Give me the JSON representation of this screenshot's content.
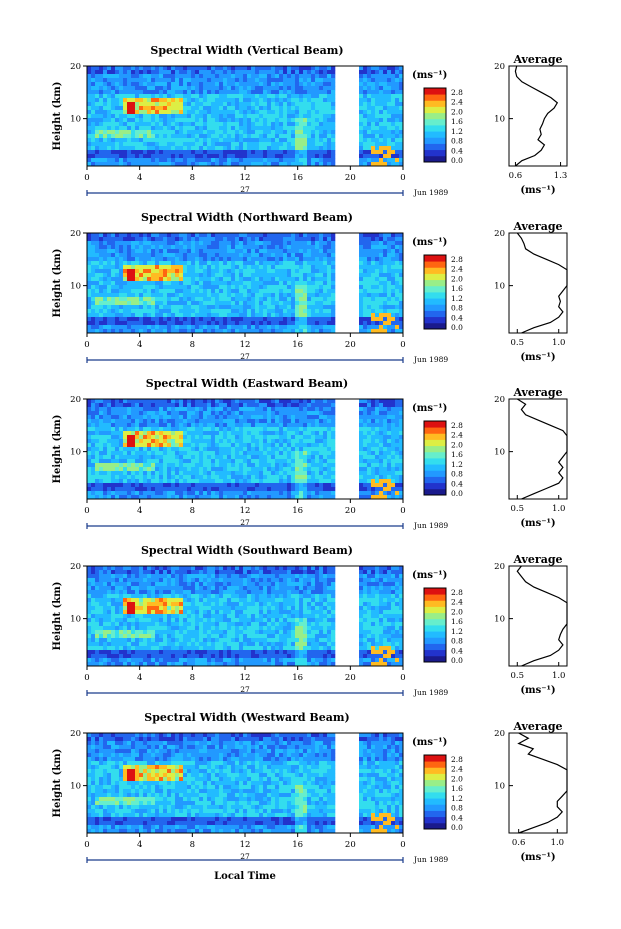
{
  "figure": {
    "xlabel": "Local Time",
    "date_label": "Jun 1989",
    "day_label": "27"
  },
  "chart_data": [
    {
      "type": "heatmap",
      "title": "Spectral Width (Vertical Beam)",
      "xlabel": "",
      "ylabel": "Height (km)",
      "x_ticks": [
        "0",
        "4",
        "8",
        "12",
        "16",
        "20",
        "0"
      ],
      "xlim": [
        0,
        24
      ],
      "y_ticks": [
        "20",
        "10"
      ],
      "ylim": [
        1,
        20
      ],
      "data_gap_hours": [
        19.0,
        20.5
      ],
      "colorbar": {
        "label": "(ms⁻¹)",
        "ticks": [
          "2.8",
          "2.4",
          "2.0",
          "1.6",
          "1.2",
          "0.8",
          "0.4",
          "0.0"
        ]
      },
      "average_profile": {
        "title": "Average",
        "xlabel": "(ms⁻¹)",
        "x_ticks": [
          "0.6",
          "1.3"
        ],
        "y_ticks": [
          "20",
          "10"
        ],
        "heights": [
          1,
          2,
          3,
          4,
          5,
          6,
          7,
          8,
          9,
          10,
          11,
          12,
          13,
          14,
          15,
          16,
          17,
          18,
          19,
          20
        ],
        "values": [
          0.6,
          0.7,
          0.9,
          1.0,
          1.05,
          0.95,
          1.0,
          0.98,
          1.02,
          1.05,
          1.1,
          1.2,
          1.25,
          1.15,
          1.0,
          0.85,
          0.7,
          0.62,
          0.6,
          0.62
        ]
      }
    },
    {
      "type": "heatmap",
      "title": "Spectral Width (Northward Beam)",
      "xlabel": "",
      "ylabel": "Height (km)",
      "x_ticks": [
        "0",
        "4",
        "8",
        "12",
        "16",
        "20",
        "0"
      ],
      "xlim": [
        0,
        24
      ],
      "y_ticks": [
        "20",
        "10"
      ],
      "ylim": [
        1,
        20
      ],
      "data_gap_hours": [
        19.0,
        20.5
      ],
      "colorbar": {
        "label": "(ms⁻¹)",
        "ticks": [
          "2.8",
          "2.4",
          "2.0",
          "1.6",
          "1.2",
          "0.8",
          "0.4",
          "0.0"
        ]
      },
      "average_profile": {
        "title": "Average",
        "xlabel": "(ms⁻¹)",
        "x_ticks": [
          "0.5",
          "1.0"
        ],
        "y_ticks": [
          "20",
          "10"
        ],
        "heights": [
          1,
          2,
          3,
          4,
          5,
          6,
          7,
          8,
          9,
          10,
          11,
          12,
          13,
          14,
          15,
          16,
          17,
          18,
          19,
          20
        ],
        "values": [
          0.55,
          0.7,
          0.9,
          1.0,
          1.05,
          1.0,
          1.02,
          1.0,
          1.05,
          1.1,
          1.15,
          1.2,
          1.2,
          1.0,
          0.85,
          0.7,
          0.6,
          0.58,
          0.55,
          0.5
        ]
      }
    },
    {
      "type": "heatmap",
      "title": "Spectral Width (Eastward Beam)",
      "xlabel": "",
      "ylabel": "Height (km)",
      "x_ticks": [
        "0",
        "4",
        "8",
        "12",
        "16",
        "20",
        "0"
      ],
      "xlim": [
        0,
        24
      ],
      "y_ticks": [
        "20",
        "10"
      ],
      "ylim": [
        1,
        20
      ],
      "data_gap_hours": [
        19.0,
        20.5
      ],
      "colorbar": {
        "label": "(ms⁻¹)",
        "ticks": [
          "2.8",
          "2.4",
          "2.0",
          "1.6",
          "1.2",
          "0.8",
          "0.4",
          "0.0"
        ]
      },
      "average_profile": {
        "title": "Average",
        "xlabel": "(ms⁻¹)",
        "x_ticks": [
          "0.5",
          "1.0"
        ],
        "y_ticks": [
          "20",
          "10"
        ],
        "heights": [
          1,
          2,
          3,
          4,
          5,
          6,
          7,
          8,
          9,
          10,
          11,
          12,
          13,
          14,
          15,
          16,
          17,
          18,
          19,
          20
        ],
        "values": [
          0.55,
          0.7,
          0.85,
          1.0,
          1.05,
          1.0,
          1.05,
          1.0,
          1.05,
          1.1,
          1.15,
          1.25,
          1.2,
          1.05,
          0.9,
          0.75,
          0.6,
          0.55,
          0.6,
          0.5
        ]
      }
    },
    {
      "type": "heatmap",
      "title": "Spectral Width (Southward Beam)",
      "xlabel": "",
      "ylabel": "Height (km)",
      "x_ticks": [
        "0",
        "4",
        "8",
        "12",
        "16",
        "20",
        "0"
      ],
      "xlim": [
        0,
        24
      ],
      "y_ticks": [
        "20",
        "10"
      ],
      "ylim": [
        1,
        20
      ],
      "data_gap_hours": [
        19.0,
        20.5
      ],
      "colorbar": {
        "label": "(ms⁻¹)",
        "ticks": [
          "2.8",
          "2.4",
          "2.0",
          "1.6",
          "1.2",
          "0.8",
          "0.4",
          "0.0"
        ]
      },
      "average_profile": {
        "title": "Average",
        "xlabel": "(ms⁻¹)",
        "x_ticks": [
          "0.5",
          "1.0"
        ],
        "y_ticks": [
          "20",
          "10"
        ],
        "heights": [
          1,
          2,
          3,
          4,
          5,
          6,
          7,
          8,
          9,
          10,
          11,
          12,
          13,
          14,
          15,
          16,
          17,
          18,
          19,
          20
        ],
        "values": [
          0.55,
          0.7,
          0.9,
          1.0,
          1.05,
          1.0,
          1.02,
          1.05,
          1.1,
          1.15,
          1.2,
          1.25,
          1.2,
          1.0,
          0.85,
          0.7,
          0.6,
          0.55,
          0.5,
          0.55
        ]
      }
    },
    {
      "type": "heatmap",
      "title": "Spectral Width (Westward Beam)",
      "xlabel": "Local Time",
      "ylabel": "Height (km)",
      "x_ticks": [
        "0",
        "4",
        "8",
        "12",
        "16",
        "20",
        "0"
      ],
      "xlim": [
        0,
        24
      ],
      "y_ticks": [
        "20",
        "10"
      ],
      "ylim": [
        1,
        20
      ],
      "data_gap_hours": [
        19.0,
        20.5
      ],
      "colorbar": {
        "label": "(ms⁻¹)",
        "ticks": [
          "2.8",
          "2.4",
          "2.0",
          "1.6",
          "1.2",
          "0.8",
          "0.4",
          "0.0"
        ]
      },
      "average_profile": {
        "title": "Average",
        "xlabel": "(ms⁻¹)",
        "x_ticks": [
          "0.6",
          "1.0"
        ],
        "y_ticks": [
          "20",
          "10"
        ],
        "heights": [
          1,
          2,
          3,
          4,
          5,
          6,
          7,
          8,
          9,
          10,
          11,
          12,
          13,
          14,
          15,
          16,
          17,
          18,
          19,
          20
        ],
        "values": [
          0.6,
          0.75,
          0.9,
          1.0,
          1.05,
          1.0,
          1.0,
          1.05,
          1.1,
          1.1,
          1.2,
          1.25,
          1.15,
          1.0,
          0.85,
          0.7,
          0.75,
          0.6,
          0.7,
          0.6
        ]
      }
    }
  ]
}
